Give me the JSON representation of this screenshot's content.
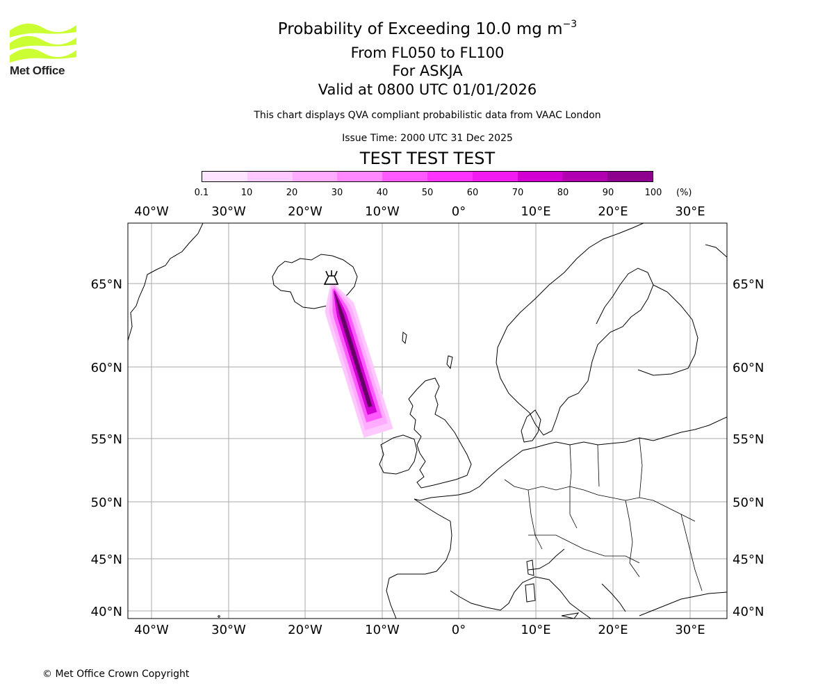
{
  "header": {
    "title_main": "Probability of Exceeding 10.0 mg m",
    "title_sup": "−3",
    "level_range": "From FL050 to FL100",
    "volcano": "For ASKJA",
    "valid_time": "Valid at 0800 UTC 01/01/2026",
    "description": "This chart displays QVA compliant probabilistic data from VAAC London",
    "issue_time": "Issue Time: 2000 UTC 31 Dec 2025",
    "test_banner": "TEST TEST TEST"
  },
  "logo": {
    "text": "Met Office",
    "color": "#ccff33"
  },
  "colorbar": {
    "ticks": [
      "0.1",
      "10",
      "20",
      "30",
      "40",
      "50",
      "60",
      "70",
      "80",
      "90",
      "100"
    ],
    "unit": "(%)",
    "colors": [
      "#ffe4ff",
      "#ffc8ff",
      "#ffabff",
      "#ff88ff",
      "#ff5aff",
      "#ff33ff",
      "#f21cf2",
      "#d200d2",
      "#b000b0",
      "#8e008e",
      "#660066"
    ]
  },
  "map": {
    "lon_labels": [
      "40°W",
      "30°W",
      "20°W",
      "10°W",
      "0°",
      "10°E",
      "20°E",
      "30°E"
    ],
    "lat_labels": [
      "65°N",
      "60°N",
      "55°N",
      "50°N",
      "45°N",
      "40°N"
    ],
    "volcano_location": {
      "lat": 65.03,
      "lon": -16.75
    },
    "plume_probability_percent": [
      5,
      15,
      35,
      60,
      90
    ],
    "grid_color": "#aaaaaa"
  },
  "footer": {
    "copyright": "© Met Office Crown Copyright"
  }
}
